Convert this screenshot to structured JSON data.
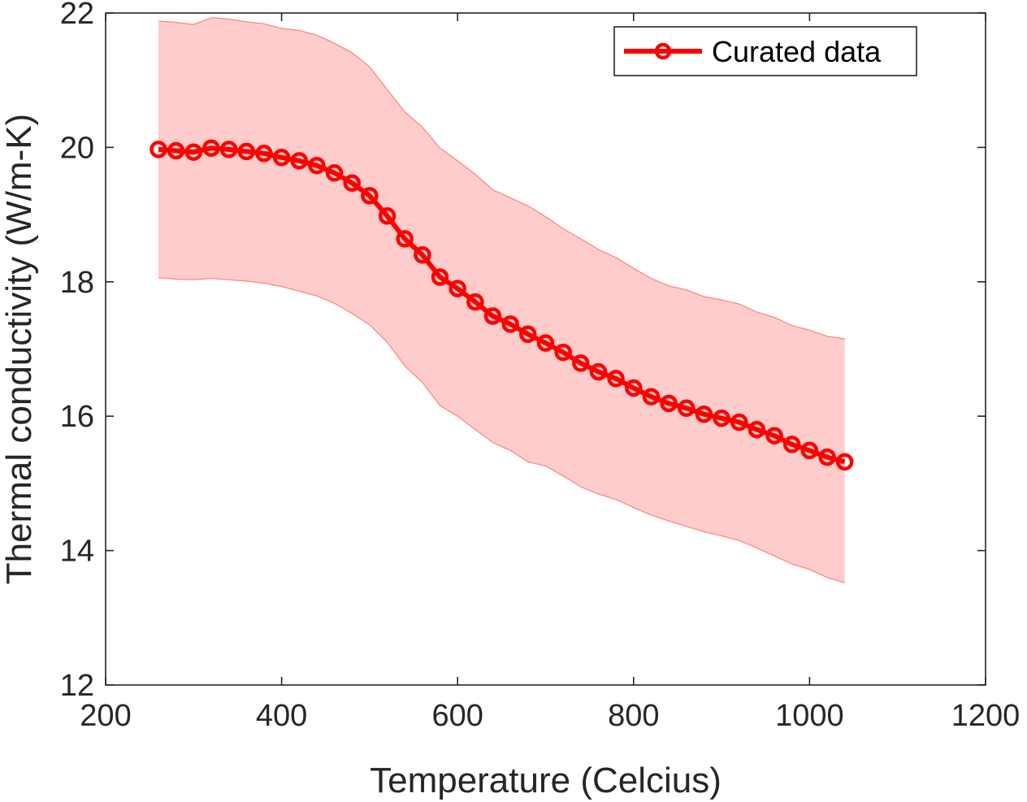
{
  "chart_data": {
    "type": "line",
    "xlabel": "Temperature (Celcius)",
    "ylabel": "Thermal conductivity (W/m-K)",
    "xlim": [
      200,
      1200
    ],
    "ylim": [
      12,
      22
    ],
    "xticks": [
      "200",
      "400",
      "600",
      "800",
      "1000",
      "1200"
    ],
    "yticks": [
      "12",
      "14",
      "16",
      "18",
      "20",
      "22"
    ],
    "grid": false,
    "legend_position": "top-right",
    "series": [
      {
        "name": "Curated data",
        "color": "#ff0000",
        "marker": "circle",
        "x": [
          260,
          280,
          300,
          320,
          340,
          360,
          380,
          400,
          420,
          440,
          460,
          480,
          500,
          520,
          540,
          560,
          580,
          600,
          620,
          640,
          660,
          680,
          700,
          720,
          740,
          760,
          780,
          800,
          820,
          840,
          860,
          880,
          900,
          920,
          940,
          960,
          980,
          1000,
          1020,
          1040
        ],
        "y": [
          19.97,
          19.95,
          19.93,
          19.99,
          19.97,
          19.94,
          19.91,
          19.85,
          19.8,
          19.73,
          19.62,
          19.47,
          19.28,
          18.98,
          18.64,
          18.4,
          18.07,
          17.9,
          17.7,
          17.49,
          17.37,
          17.22,
          17.09,
          16.95,
          16.79,
          16.66,
          16.56,
          16.42,
          16.29,
          16.19,
          16.12,
          16.03,
          15.97,
          15.91,
          15.8,
          15.71,
          15.58,
          15.49,
          15.39,
          15.32
        ]
      }
    ],
    "band": {
      "color": "#ffcccc",
      "edge_color": "#ff8080",
      "x": [
        260,
        280,
        300,
        320,
        340,
        360,
        380,
        400,
        420,
        440,
        460,
        480,
        500,
        520,
        540,
        560,
        580,
        600,
        620,
        640,
        660,
        680,
        700,
        720,
        740,
        760,
        780,
        800,
        820,
        840,
        860,
        880,
        900,
        920,
        940,
        960,
        980,
        1000,
        1020,
        1040
      ],
      "upper": [
        21.88,
        21.86,
        21.83,
        21.93,
        21.91,
        21.87,
        21.84,
        21.77,
        21.74,
        21.67,
        21.55,
        21.41,
        21.2,
        20.86,
        20.53,
        20.3,
        19.99,
        19.8,
        19.6,
        19.37,
        19.25,
        19.13,
        18.97,
        18.79,
        18.64,
        18.48,
        18.36,
        18.2,
        18.05,
        17.94,
        17.88,
        17.78,
        17.73,
        17.67,
        17.55,
        17.47,
        17.35,
        17.28,
        17.19,
        17.15
      ],
      "lower": [
        18.06,
        18.04,
        18.03,
        18.05,
        18.03,
        18.01,
        17.98,
        17.93,
        17.86,
        17.79,
        17.68,
        17.53,
        17.36,
        17.1,
        16.75,
        16.5,
        16.16,
        16.0,
        15.8,
        15.61,
        15.49,
        15.32,
        15.26,
        15.11,
        14.95,
        14.84,
        14.76,
        14.64,
        14.53,
        14.44,
        14.36,
        14.28,
        14.22,
        14.15,
        14.04,
        13.92,
        13.8,
        13.72,
        13.6,
        13.52
      ]
    }
  }
}
